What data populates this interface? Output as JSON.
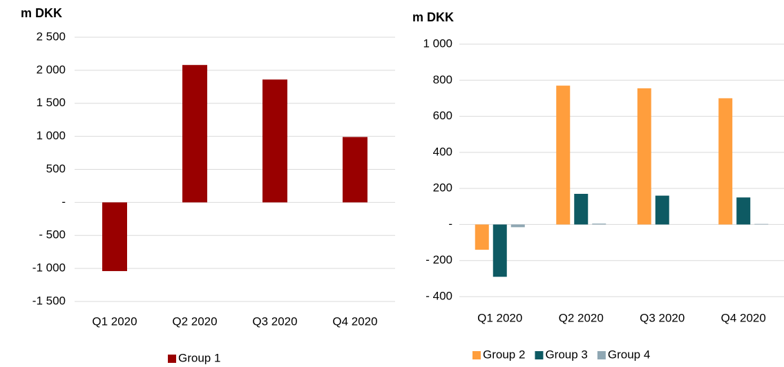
{
  "chart_data": [
    {
      "type": "bar",
      "y_label": "m DKK",
      "categories": [
        "Q1 2020",
        "Q2 2020",
        "Q3 2020",
        "Q4 2020"
      ],
      "series": [
        {
          "name": "Group 1",
          "color": "#990000",
          "values": [
            -1040,
            2080,
            1860,
            990
          ]
        }
      ],
      "ylim": [
        -1500,
        2500
      ],
      "yticks": [
        {
          "value": -1500,
          "label": "-1 500"
        },
        {
          "value": -1000,
          "label": "-1 000"
        },
        {
          "value": -500,
          "label": "- 500"
        },
        {
          "value": 0,
          "label": "-"
        },
        500,
        {
          "value": 1000,
          "label": "1 000"
        },
        {
          "value": 1500,
          "label": "1 500"
        },
        {
          "value": 2000,
          "label": "2 000"
        },
        {
          "value": 2500,
          "label": "2 500"
        }
      ],
      "grid": true
    },
    {
      "type": "bar",
      "y_label": "m DKK",
      "categories": [
        "Q1 2020",
        "Q2 2020",
        "Q3 2020",
        "Q4 2020"
      ],
      "series": [
        {
          "name": "Group 2",
          "color": "#ff9e3d",
          "values": [
            -140,
            770,
            755,
            700
          ]
        },
        {
          "name": "Group 3",
          "color": "#0e5a63",
          "values": [
            -290,
            170,
            160,
            150
          ]
        },
        {
          "name": "Group 4",
          "color": "#8fa7b3",
          "values": [
            -15,
            5,
            0,
            3
          ]
        }
      ],
      "ylim": [
        -400,
        1000
      ],
      "yticks": [
        {
          "value": -400,
          "label": "- 400"
        },
        {
          "value": -200,
          "label": "- 200"
        },
        {
          "value": 0,
          "label": "-"
        },
        200,
        400,
        600,
        800,
        {
          "value": 1000,
          "label": "1 000"
        }
      ],
      "grid": true
    }
  ]
}
